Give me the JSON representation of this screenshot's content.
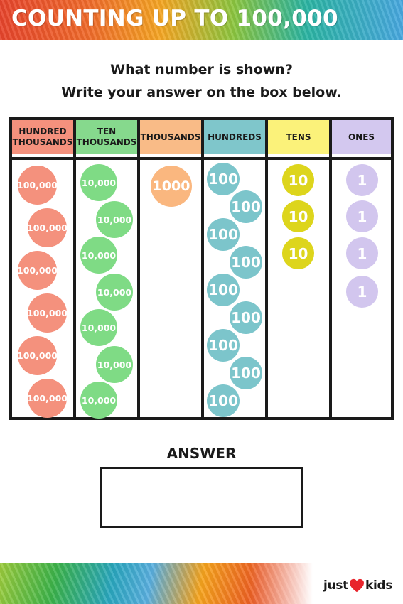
{
  "header": {
    "title": "COUNTING UP TO 100,000"
  },
  "instructions": {
    "line1": "What number is shown?",
    "line2": "Write your answer on the box below."
  },
  "place_value_table": {
    "columns": [
      {
        "header": [
          "HUNDRED",
          "THOUSANDS"
        ],
        "color": "#f4917d",
        "disc_label": "100,000",
        "count": 6
      },
      {
        "header": [
          "TEN",
          "THOUSANDS"
        ],
        "color": "#7fdb85",
        "disc_label": "10,000",
        "count": 7
      },
      {
        "header": [
          "THOUSANDS"
        ],
        "color": "#fab77f",
        "disc_label": "1000",
        "count": 1
      },
      {
        "header": [
          "HUNDREDS"
        ],
        "color": "#7cc5cb",
        "disc_label": "100",
        "count": 9
      },
      {
        "header": [
          "TENS"
        ],
        "color": "#ddd51c",
        "disc_label": "10",
        "count": 3
      },
      {
        "header": [
          "ONES"
        ],
        "color": "#d2c6ee",
        "disc_label": "1",
        "count": 4
      }
    ]
  },
  "answer": {
    "label": "ANSWER",
    "value": ""
  },
  "brand": {
    "left": "just",
    "right": "kids",
    "heart_color": "#e8242c"
  }
}
